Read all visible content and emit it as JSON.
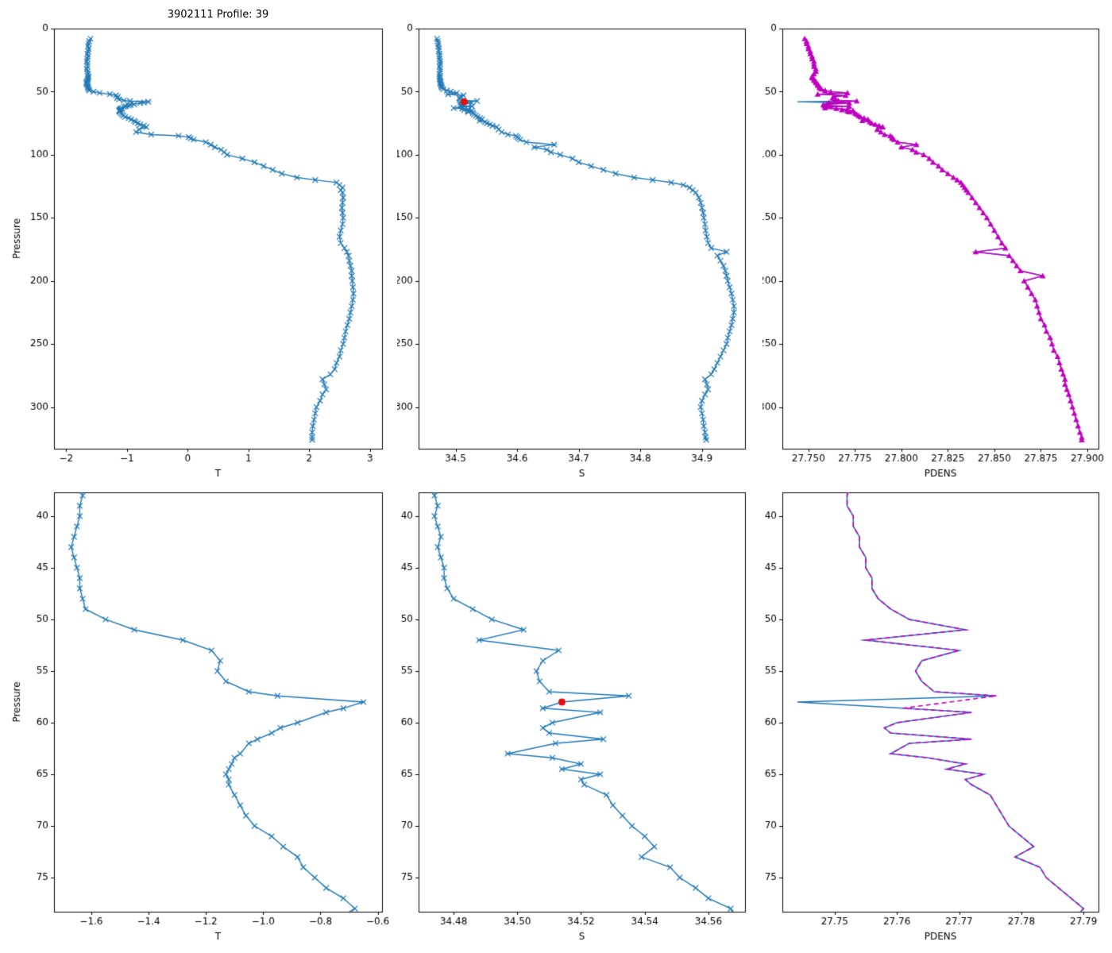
{
  "figure": {
    "title": "3902111 Profile: 39",
    "background": "#ffffff",
    "colors": {
      "profile_line": "#1f77b4",
      "pdens_line": "#bf00bf",
      "flagged_point": "#e01010",
      "axis": "#000000"
    }
  },
  "chart_data": {
    "type": "line",
    "profile": {
      "pressure": [
        8,
        10,
        12,
        14,
        16,
        18,
        20,
        22,
        24,
        26,
        28,
        30,
        32,
        34,
        36,
        38,
        39,
        40,
        41,
        42,
        43,
        44,
        45,
        46,
        47,
        48,
        49,
        50,
        51,
        52,
        53,
        54,
        55,
        56,
        57,
        57.4,
        58,
        58.6,
        59,
        60,
        60.5,
        61,
        61.6,
        62,
        63,
        63.4,
        64,
        64.5,
        65,
        65.5,
        66,
        67,
        68,
        69,
        70,
        71,
        72,
        73,
        74,
        75,
        76,
        77,
        78,
        80,
        82,
        84,
        85,
        86,
        87,
        88,
        90,
        92,
        94,
        96,
        98,
        100,
        103,
        106,
        109,
        112,
        115,
        118,
        120,
        122,
        124,
        126,
        128,
        130,
        134,
        138,
        142,
        146,
        150,
        155,
        160,
        165,
        170,
        174,
        177,
        180,
        184,
        188,
        192,
        196,
        200,
        205,
        210,
        215,
        220,
        225,
        230,
        235,
        240,
        245,
        250,
        255,
        260,
        265,
        270,
        274,
        278,
        282,
        286,
        290,
        295,
        300,
        305,
        310,
        315,
        320,
        324,
        326
      ],
      "T": [
        -1.6,
        -1.62,
        -1.63,
        -1.64,
        -1.63,
        -1.64,
        -1.65,
        -1.64,
        -1.65,
        -1.66,
        -1.65,
        -1.65,
        -1.66,
        -1.65,
        -1.64,
        -1.63,
        -1.64,
        -1.64,
        -1.65,
        -1.66,
        -1.67,
        -1.66,
        -1.65,
        -1.64,
        -1.64,
        -1.63,
        -1.62,
        -1.55,
        -1.45,
        -1.28,
        -1.18,
        -1.15,
        -1.16,
        -1.13,
        -1.05,
        -0.95,
        -0.65,
        -0.72,
        -0.78,
        -0.88,
        -0.94,
        -0.97,
        -1.02,
        -1.05,
        -1.08,
        -1.1,
        -1.11,
        -1.12,
        -1.13,
        -1.12,
        -1.12,
        -1.1,
        -1.08,
        -1.06,
        -1.03,
        -0.97,
        -0.93,
        -0.88,
        -0.86,
        -0.82,
        -0.78,
        -0.72,
        -0.68,
        -0.8,
        -0.85,
        -0.6,
        -0.15,
        0.02,
        0.05,
        0.1,
        0.3,
        0.38,
        0.45,
        0.55,
        0.6,
        0.65,
        0.9,
        1.1,
        1.25,
        1.4,
        1.55,
        1.8,
        2.1,
        2.45,
        2.5,
        2.55,
        2.52,
        2.55,
        2.56,
        2.55,
        2.54,
        2.55,
        2.56,
        2.55,
        2.52,
        2.5,
        2.52,
        2.58,
        2.62,
        2.65,
        2.66,
        2.68,
        2.7,
        2.7,
        2.71,
        2.72,
        2.73,
        2.72,
        2.7,
        2.68,
        2.66,
        2.63,
        2.6,
        2.58,
        2.56,
        2.52,
        2.5,
        2.45,
        2.42,
        2.35,
        2.22,
        2.25,
        2.28,
        2.22,
        2.18,
        2.12,
        2.1,
        2.08,
        2.06,
        2.05,
        2.05,
        2.05
      ],
      "S": [
        34.47,
        34.471,
        34.472,
        34.472,
        34.473,
        34.473,
        34.474,
        34.474,
        34.474,
        34.475,
        34.475,
        34.474,
        34.475,
        34.475,
        34.474,
        34.474,
        34.475,
        34.474,
        34.475,
        34.476,
        34.475,
        34.476,
        34.477,
        34.477,
        34.478,
        34.48,
        34.486,
        34.492,
        34.502,
        34.488,
        34.513,
        34.508,
        34.506,
        34.507,
        34.51,
        34.535,
        34.514,
        34.508,
        34.526,
        34.511,
        34.508,
        34.51,
        34.527,
        34.512,
        34.497,
        34.511,
        34.52,
        34.514,
        34.526,
        34.52,
        34.521,
        34.528,
        34.53,
        34.533,
        34.536,
        34.54,
        34.543,
        34.539,
        34.548,
        34.551,
        34.556,
        34.56,
        34.567,
        34.57,
        34.575,
        34.585,
        34.598,
        34.6,
        34.602,
        34.605,
        34.615,
        34.66,
        34.628,
        34.648,
        34.655,
        34.67,
        34.69,
        34.7,
        34.72,
        34.74,
        34.76,
        34.79,
        34.82,
        34.85,
        34.87,
        34.88,
        34.885,
        34.89,
        34.895,
        34.898,
        34.9,
        34.902,
        34.903,
        34.905,
        34.906,
        34.908,
        34.91,
        34.915,
        34.94,
        34.925,
        34.93,
        34.935,
        34.938,
        34.94,
        34.942,
        34.945,
        34.948,
        34.95,
        34.952,
        34.952,
        34.95,
        34.948,
        34.945,
        34.942,
        34.94,
        34.935,
        34.93,
        34.925,
        34.92,
        34.915,
        34.905,
        34.908,
        34.91,
        34.905,
        34.9,
        34.898,
        34.9,
        34.902,
        34.903,
        34.905,
        34.906,
        34.907
      ],
      "PDENS": [
        27.748,
        27.749,
        27.749,
        27.75,
        27.75,
        27.751,
        27.751,
        27.752,
        27.752,
        27.753,
        27.753,
        27.753,
        27.754,
        27.754,
        27.753,
        27.752,
        27.752,
        27.753,
        27.753,
        27.754,
        27.754,
        27.755,
        27.755,
        27.756,
        27.756,
        27.757,
        27.759,
        27.762,
        27.771,
        27.755,
        27.77,
        27.764,
        27.763,
        27.764,
        27.766,
        27.776,
        27.744,
        27.761,
        27.772,
        27.76,
        27.758,
        27.759,
        27.772,
        27.762,
        27.759,
        27.765,
        27.771,
        27.768,
        27.774,
        27.771,
        27.772,
        27.775,
        27.776,
        27.777,
        27.778,
        27.78,
        27.782,
        27.779,
        27.783,
        27.784,
        27.786,
        27.788,
        27.79,
        27.787,
        27.789,
        27.791,
        27.794,
        27.795,
        27.795,
        27.796,
        27.798,
        27.808,
        27.8,
        27.806,
        27.808,
        27.812,
        27.815,
        27.817,
        27.82,
        27.822,
        27.825,
        27.828,
        27.83,
        27.832,
        27.833,
        27.834,
        27.835,
        27.836,
        27.838,
        27.84,
        27.842,
        27.844,
        27.846,
        27.848,
        27.85,
        27.852,
        27.854,
        27.856,
        27.84,
        27.858,
        27.86,
        27.862,
        27.864,
        27.876,
        27.866,
        27.868,
        27.87,
        27.872,
        27.873,
        27.874,
        27.875,
        27.877,
        27.878,
        27.88,
        27.881,
        27.882,
        27.884,
        27.885,
        27.886,
        27.887,
        27.888,
        27.888,
        27.889,
        27.89,
        27.891,
        27.892,
        27.893,
        27.894,
        27.895,
        27.896,
        27.897,
        27.897
      ]
    },
    "flagged_point": {
      "pressure": 58,
      "S": 34.514,
      "excluded_from_corrected_pdens": true
    },
    "charts": [
      {
        "id": "t_full",
        "xlabel": "T",
        "ylabel": "Pressure",
        "xlim": [
          -2.2,
          3.2
        ],
        "xticks": [
          -2,
          -1,
          0,
          1,
          2,
          3
        ],
        "xtick_decimals": 0,
        "ylim": [
          0,
          333
        ],
        "yticks": [
          0,
          50,
          100,
          150,
          200,
          250,
          300
        ],
        "series": [
          {
            "xkey": "T",
            "variant": "raw",
            "color": "#1f77b4",
            "marker": "x",
            "marker_size": 3.4,
            "line_width": 1.4
          }
        ]
      },
      {
        "id": "s_full",
        "xlabel": "S",
        "ylabel": "",
        "xlim": [
          34.44,
          34.97
        ],
        "xticks": [
          34.5,
          34.6,
          34.7,
          34.8,
          34.9
        ],
        "xtick_decimals": 1,
        "ylim": [
          0,
          333
        ],
        "yticks": [
          0,
          50,
          100,
          150,
          200,
          250,
          300
        ],
        "series": [
          {
            "xkey": "S",
            "variant": "raw",
            "color": "#1f77b4",
            "marker": "x",
            "marker_size": 3.4,
            "line_width": 1.4
          }
        ],
        "flag_dot": {
          "show": true,
          "color": "#e01010",
          "radius": 4.5
        }
      },
      {
        "id": "pdens_full",
        "xlabel": "PDENS",
        "ylabel": "",
        "xlim": [
          27.736,
          27.906
        ],
        "xticks": [
          27.75,
          27.775,
          27.8,
          27.825,
          27.85,
          27.875,
          27.9
        ],
        "xtick_decimals": 3,
        "ylim": [
          0,
          333
        ],
        "yticks": [
          0,
          50,
          100,
          150,
          200,
          250,
          300
        ],
        "series": [
          {
            "xkey": "PDENS",
            "variant": "raw",
            "color": "#1f77b4",
            "marker": null,
            "line_width": 1.4
          },
          {
            "xkey": "PDENS",
            "variant": "corrected",
            "color": "#bf00bf",
            "marker": "triangle",
            "marker_size": 3.8,
            "line_width": 1.4
          }
        ]
      },
      {
        "id": "t_zoom",
        "xlabel": "T",
        "ylabel": "Pressure",
        "xlim": [
          -1.73,
          -0.585
        ],
        "xticks": [
          -1.6,
          -1.4,
          -1.2,
          -1.0,
          -0.8,
          -0.6
        ],
        "xtick_decimals": 1,
        "ylim": [
          37.7,
          78.3
        ],
        "yticks": [
          40,
          45,
          50,
          55,
          60,
          65,
          70,
          75
        ],
        "series": [
          {
            "xkey": "T",
            "variant": "raw",
            "color": "#1f77b4",
            "marker": "x",
            "marker_size": 3.4,
            "line_width": 1.4
          }
        ]
      },
      {
        "id": "s_zoom",
        "xlabel": "S",
        "ylabel": "",
        "xlim": [
          34.469,
          34.5715
        ],
        "xticks": [
          34.48,
          34.5,
          34.52,
          34.54,
          34.56
        ],
        "xtick_decimals": 2,
        "ylim": [
          37.7,
          78.3
        ],
        "yticks": [
          40,
          45,
          50,
          55,
          60,
          65,
          70,
          75
        ],
        "series": [
          {
            "xkey": "S",
            "variant": "raw",
            "color": "#1f77b4",
            "marker": "x",
            "marker_size": 3.4,
            "line_width": 1.4
          }
        ],
        "flag_dot": {
          "show": true,
          "color": "#e01010",
          "radius": 4.5
        }
      },
      {
        "id": "pdens_zoom",
        "xlabel": "PDENS",
        "ylabel": "",
        "xlim": [
          27.7416,
          27.7924
        ],
        "xticks": [
          27.75,
          27.76,
          27.77,
          27.78,
          27.79
        ],
        "xtick_decimals": 2,
        "ylim": [
          37.7,
          78.3
        ],
        "yticks": [
          40,
          45,
          50,
          55,
          60,
          65,
          70,
          75
        ],
        "series": [
          {
            "xkey": "PDENS",
            "variant": "raw",
            "color": "#1f77b4",
            "marker": null,
            "line_width": 1.6
          },
          {
            "xkey": "PDENS",
            "variant": "corrected",
            "color": "#bf00bf",
            "marker": null,
            "line_width": 1.6,
            "dash": [
              6,
              4
            ]
          }
        ]
      }
    ]
  }
}
